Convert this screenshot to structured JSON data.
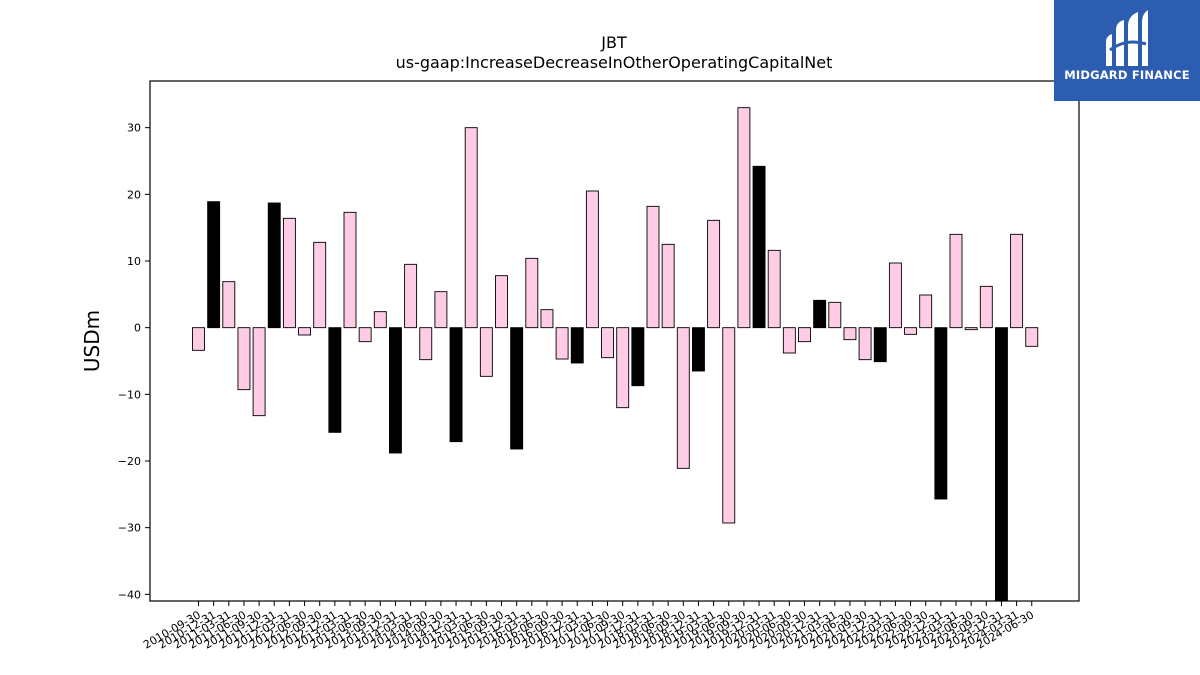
{
  "brand": {
    "name": "MIDGARD FINANCE",
    "background": "#2d5db0"
  },
  "chart_data": {
    "type": "bar",
    "title": "JBT",
    "subtitle": "us-gaap:IncreaseDecreaseInOtherOperatingCapitalNet",
    "xlabel": "",
    "ylabel": "USDm",
    "ylim": [
      -41,
      37
    ],
    "yticks": [
      -40,
      -30,
      -20,
      -10,
      0,
      10,
      20,
      30
    ],
    "grid": false,
    "colors": {
      "default": "#ffcce6",
      "highlight": "#000000",
      "edge": "#000000"
    },
    "categories": [
      "2010-09-30",
      "2010-12-31",
      "2011-03-31",
      "2011-06-30",
      "2011-09-30",
      "2011-12-31",
      "2012-03-31",
      "2012-06-30",
      "2012-09-30",
      "2012-12-31",
      "2013-03-31",
      "2013-06-30",
      "2013-09-30",
      "2013-12-31",
      "2014-03-31",
      "2014-06-30",
      "2014-09-30",
      "2014-12-31",
      "2015-03-31",
      "2015-06-30",
      "2015-09-30",
      "2015-12-31",
      "2016-03-31",
      "2016-06-30",
      "2016-09-30",
      "2016-12-31",
      "2017-03-31",
      "2017-06-30",
      "2017-09-30",
      "2017-12-31",
      "2018-03-31",
      "2018-06-30",
      "2018-09-30",
      "2018-12-31",
      "2019-03-31",
      "2019-06-30",
      "2019-09-30",
      "2019-12-31",
      "2020-03-31",
      "2020-06-30",
      "2020-09-30",
      "2020-12-31",
      "2021-03-31",
      "2021-06-30",
      "2021-09-30",
      "2021-12-31",
      "2022-03-31",
      "2022-06-30",
      "2022-09-30",
      "2022-12-31",
      "2023-03-31",
      "2023-06-30",
      "2023-09-30",
      "2023-12-31",
      "2024-03-31",
      "2024-06-30"
    ],
    "values": [
      -3.4,
      18.9,
      6.9,
      -9.3,
      -13.2,
      18.7,
      16.4,
      -1.1,
      12.8,
      -15.7,
      17.3,
      -2.1,
      2.4,
      -18.8,
      9.5,
      -4.8,
      5.4,
      -17.1,
      30.0,
      -7.3,
      7.8,
      -18.2,
      10.4,
      2.7,
      -4.7,
      -5.3,
      20.5,
      -4.5,
      -12.0,
      -8.7,
      18.2,
      12.5,
      -21.1,
      -6.5,
      16.1,
      -29.3,
      33.0,
      24.2,
      11.6,
      -3.8,
      -2.1,
      4.1,
      3.8,
      -1.8,
      -4.8,
      -5.1,
      9.7,
      -1.0,
      4.9,
      -25.7,
      14.0,
      -0.3,
      6.2,
      -41.0,
      14.0,
      -2.8
    ],
    "highlight": [
      false,
      true,
      false,
      false,
      false,
      true,
      false,
      false,
      false,
      true,
      false,
      false,
      false,
      true,
      false,
      false,
      false,
      true,
      false,
      false,
      false,
      true,
      false,
      false,
      false,
      true,
      false,
      false,
      false,
      true,
      false,
      false,
      false,
      true,
      false,
      false,
      false,
      true,
      false,
      false,
      false,
      true,
      false,
      false,
      false,
      true,
      false,
      false,
      false,
      true,
      false,
      false,
      false,
      true,
      false,
      false
    ]
  }
}
